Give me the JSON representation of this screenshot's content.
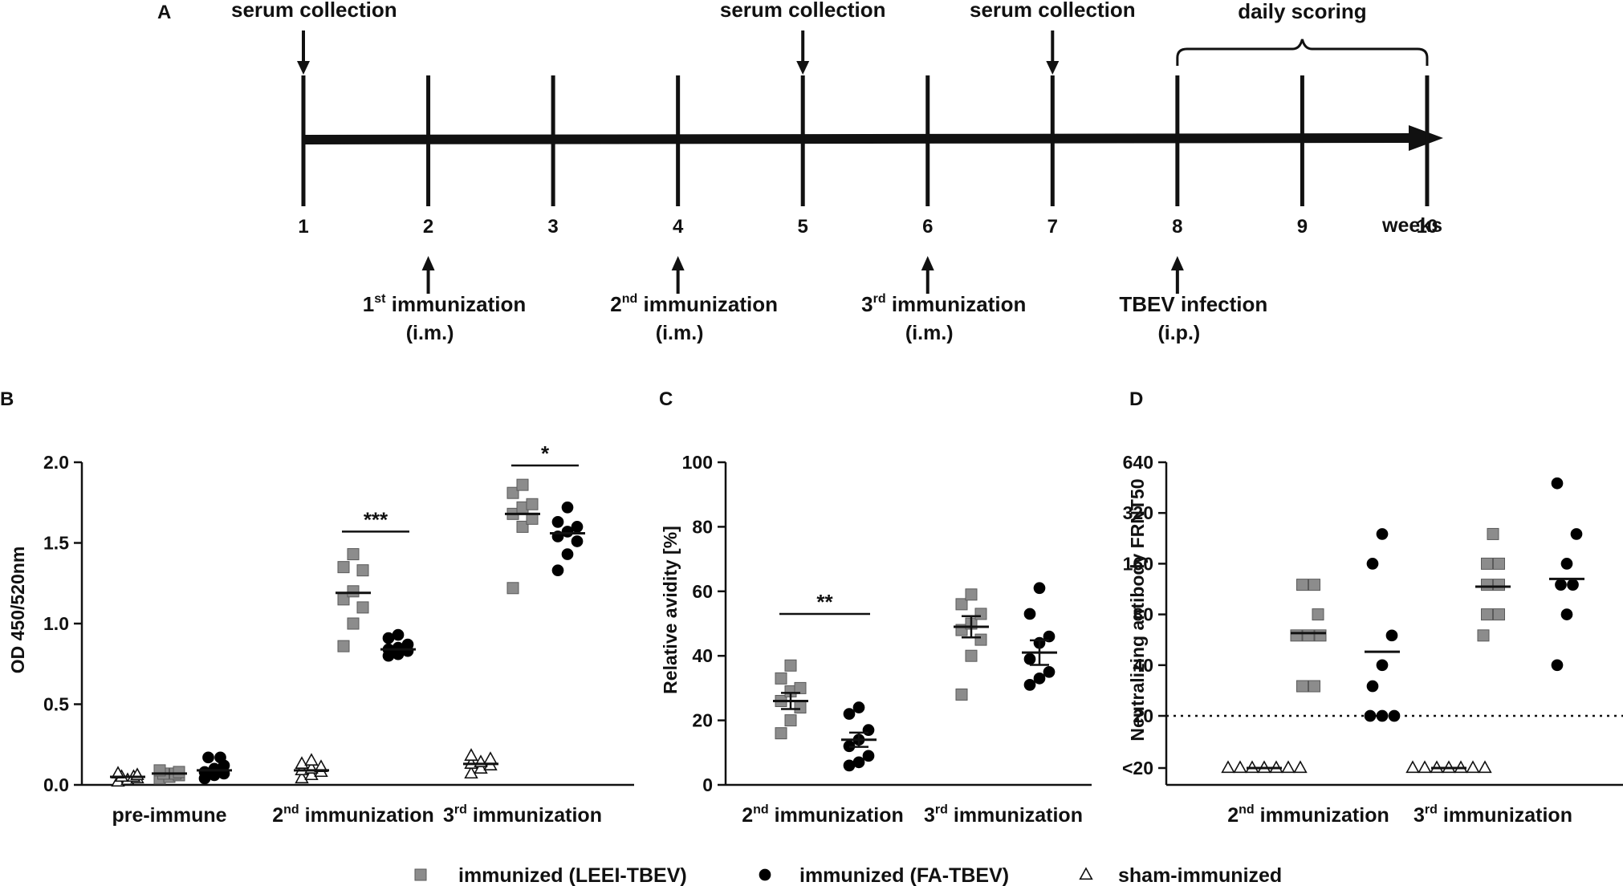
{
  "timeline": {
    "panel_label": "A",
    "weeks": [
      "1",
      "2",
      "3",
      "4",
      "5",
      "6",
      "7",
      "8",
      "9",
      "10"
    ],
    "unit_label": "weeks",
    "serum_collection": [
      {
        "week": 1,
        "label": "serum collection"
      },
      {
        "week": 5,
        "label": "serum collection"
      },
      {
        "week": 7,
        "label": "serum collection"
      }
    ],
    "events": [
      {
        "week": 2,
        "sup_prefix": "1",
        "sup": "st",
        "label": "immunization",
        "route": "(i.m.)"
      },
      {
        "week": 4,
        "sup_prefix": "2",
        "sup": "nd",
        "label": "immunization",
        "route": "(i.m.)"
      },
      {
        "week": 6,
        "sup_prefix": "3",
        "sup": "rd",
        "label": "immunization",
        "route": "(i.m.)"
      },
      {
        "week": 8,
        "sup_prefix": "",
        "sup": "",
        "label": "TBEV infection",
        "route": "(i.p.)"
      }
    ],
    "scoring": {
      "from_week": 8,
      "to_week": 10,
      "label": "daily scoring"
    }
  },
  "chart_data": [
    {
      "panel": "B",
      "type": "scatter",
      "ylabel": "OD 450/520nm",
      "ylim": [
        0,
        2.0
      ],
      "yticks": [
        "0.0",
        "0.5",
        "1.0",
        "1.5",
        "2.0"
      ],
      "ytick_values": [
        0,
        0.5,
        1.0,
        1.5,
        2.0
      ],
      "groups": [
        {
          "main": "pre-immune",
          "num": "",
          "sup": ""
        },
        {
          "main": " immunization",
          "num": "2",
          "sup": "nd"
        },
        {
          "main": " immunization",
          "num": "3",
          "sup": "rd"
        }
      ],
      "series": [
        {
          "name": "sham-immunized",
          "marker": "triangle",
          "values": [
            [
              0.02,
              0.03,
              0.04,
              0.05,
              0.05,
              0.06,
              0.07
            ],
            [
              0.04,
              0.06,
              0.08,
              0.09,
              0.1,
              0.11,
              0.13,
              0.15
            ],
            [
              0.07,
              0.1,
              0.12,
              0.13,
              0.14,
              0.16,
              0.18
            ]
          ],
          "means": [
            0.05,
            0.09,
            0.13
          ]
        },
        {
          "name": "immunized (LEEI-TBEV)",
          "marker": "square",
          "values": [
            [
              0.04,
              0.05,
              0.06,
              0.07,
              0.07,
              0.08,
              0.09
            ],
            [
              0.86,
              1.0,
              1.1,
              1.15,
              1.2,
              1.33,
              1.35,
              1.43
            ],
            [
              1.22,
              1.6,
              1.65,
              1.68,
              1.72,
              1.74,
              1.81,
              1.86
            ]
          ],
          "means": [
            0.07,
            1.19,
            1.68
          ]
        },
        {
          "name": "immunized (FA-TBEV)",
          "marker": "circle",
          "values": [
            [
              0.04,
              0.06,
              0.07,
              0.08,
              0.1,
              0.12,
              0.17,
              0.17
            ],
            [
              0.8,
              0.81,
              0.83,
              0.84,
              0.85,
              0.87,
              0.91,
              0.93
            ],
            [
              1.33,
              1.43,
              1.51,
              1.54,
              1.57,
              1.6,
              1.63,
              1.72
            ]
          ],
          "means": [
            0.09,
            0.84,
            1.56
          ]
        }
      ],
      "significance": [
        {
          "group": 1,
          "y": 1.57,
          "label": "***"
        },
        {
          "group": 2,
          "y": 1.98,
          "label": "*"
        }
      ]
    },
    {
      "panel": "C",
      "type": "scatter",
      "ylabel": "Relative avidity [%]",
      "ylim": [
        0,
        100
      ],
      "yticks": [
        "0",
        "20",
        "40",
        "60",
        "80",
        "100"
      ],
      "ytick_values": [
        0,
        20,
        40,
        60,
        80,
        100
      ],
      "groups": [
        {
          "main": " immunization",
          "num": "2",
          "sup": "nd"
        },
        {
          "main": " immunization",
          "num": "3",
          "sup": "rd"
        }
      ],
      "series": [
        {
          "name": "immunized (LEEI-TBEV)",
          "marker": "square",
          "values": [
            [
              16,
              20,
              24,
              26,
              29,
              30,
              33,
              37
            ],
            [
              28,
              40,
              45,
              48,
              50,
              53,
              56,
              59
            ]
          ],
          "means": [
            26,
            49
          ],
          "sem": [
            2.5,
            3.3
          ]
        },
        {
          "name": "immunized (FA-TBEV)",
          "marker": "circle",
          "values": [
            [
              6,
              7,
              9,
              12,
              14,
              17,
              22,
              24
            ],
            [
              31,
              33,
              35,
              39,
              44,
              46,
              53,
              61
            ]
          ],
          "means": [
            14,
            41
          ],
          "sem": [
            2.2,
            3.8
          ]
        }
      ],
      "significance": [
        {
          "group": 0,
          "y": 53,
          "label": "**"
        }
      ]
    },
    {
      "panel": "D",
      "type": "scatter",
      "ylabel": "Neutralizing antibody FRNT50",
      "yscale": "log2",
      "ylim": [
        10,
        640
      ],
      "yticks": [
        "<20",
        "20",
        "40",
        "80",
        "160",
        "320",
        "640"
      ],
      "ytick_values": [
        10,
        20,
        40,
        80,
        160,
        320,
        640
      ],
      "threshold": 20,
      "groups": [
        {
          "main": " immunization",
          "num": "2",
          "sup": "nd"
        },
        {
          "main": " immunization",
          "num": "3",
          "sup": "rd"
        }
      ],
      "series": [
        {
          "name": "sham-immunized",
          "marker": "triangle",
          "values": [
            [
              10,
              10,
              10,
              10,
              10,
              10,
              10
            ],
            [
              10,
              10,
              10,
              10,
              10,
              10,
              10
            ]
          ],
          "means": [
            10,
            10
          ]
        },
        {
          "name": "immunized (LEEI-TBEV)",
          "marker": "square",
          "values": [
            [
              30,
              30,
              60,
              60,
              60,
              80,
              120,
              120
            ],
            [
              60,
              80,
              80,
              120,
              120,
              160,
              160,
              240
            ]
          ],
          "means": [
            62,
            117
          ]
        },
        {
          "name": "immunized (FA-TBEV)",
          "marker": "circle",
          "values": [
            [
              20,
              20,
              20,
              30,
              40,
              60,
              160,
              240
            ],
            [
              40,
              80,
              120,
              120,
              160,
              240,
              480
            ]
          ],
          "means": [
            48,
            130
          ]
        }
      ]
    }
  ],
  "legend": [
    {
      "marker": "square",
      "label": "immunized (LEEI-TBEV)"
    },
    {
      "marker": "circle",
      "label": "immunized (FA-TBEV)"
    },
    {
      "marker": "triangle",
      "label": "sham-immunized"
    }
  ],
  "colors": {
    "square": "#8c8c8c",
    "circle": "#000000",
    "triangle": "#ffffff",
    "ink": "#111111"
  }
}
